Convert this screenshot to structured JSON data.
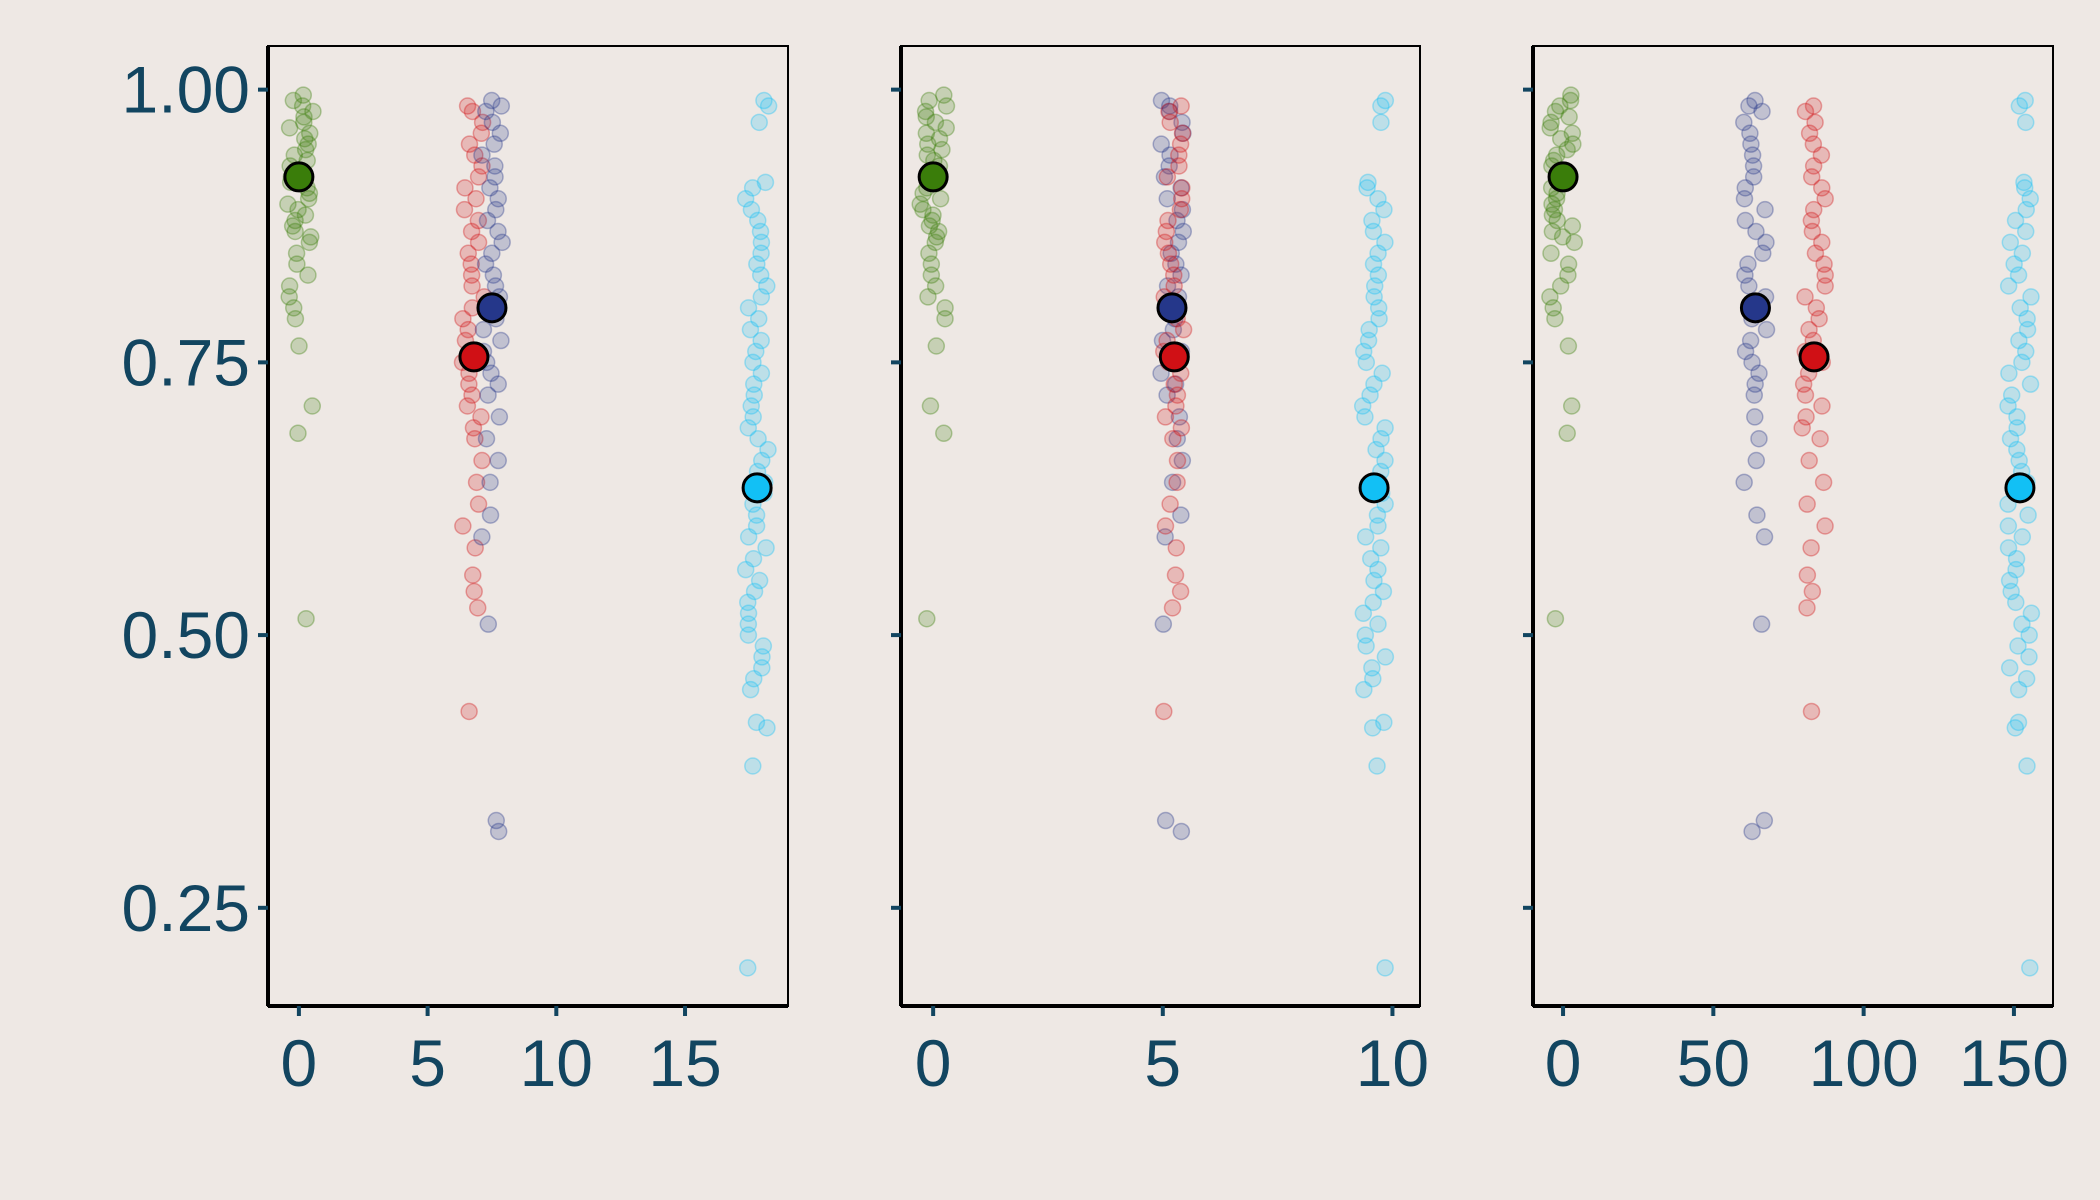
{
  "chart_data": [
    {
      "type": "scatter",
      "xlim": [
        -1.2,
        19
      ],
      "x_ticks": [
        "0",
        "5",
        "10",
        "15"
      ],
      "x_tick_values": [
        0,
        5,
        10,
        15
      ],
      "ylim": [
        0.16,
        1.04
      ],
      "y_ticks": [
        "0.25",
        "0.50",
        "0.75",
        "1.00"
      ],
      "y_tick_values": [
        0.25,
        0.5,
        0.75,
        1.0
      ],
      "show_y_labels": true,
      "series": [
        {
          "color": "#3A7D0A",
          "x_center": 0.0,
          "mean": 0.92,
          "spread": 0.55,
          "points": [
            0.995,
            0.99,
            0.985,
            0.98,
            0.975,
            0.97,
            0.965,
            0.96,
            0.955,
            0.95,
            0.945,
            0.94,
            0.935,
            0.93,
            0.925,
            0.92,
            0.915,
            0.91,
            0.905,
            0.9,
            0.895,
            0.89,
            0.885,
            0.88,
            0.875,
            0.87,
            0.865,
            0.86,
            0.85,
            0.84,
            0.83,
            0.82,
            0.81,
            0.8,
            0.79,
            0.765,
            0.71,
            0.685,
            0.515
          ]
        },
        {
          "color": "#D01015",
          "x_center": 6.8,
          "mean": 0.755,
          "spread": 0.45,
          "points": [
            0.985,
            0.98,
            0.97,
            0.96,
            0.95,
            0.94,
            0.93,
            0.92,
            0.91,
            0.9,
            0.89,
            0.88,
            0.87,
            0.86,
            0.85,
            0.84,
            0.83,
            0.82,
            0.81,
            0.8,
            0.79,
            0.78,
            0.77,
            0.76,
            0.75,
            0.74,
            0.73,
            0.72,
            0.71,
            0.7,
            0.69,
            0.68,
            0.66,
            0.64,
            0.62,
            0.6,
            0.58,
            0.555,
            0.54,
            0.525,
            0.43
          ]
        },
        {
          "color": "#25378A",
          "x_center": 7.5,
          "mean": 0.8,
          "spread": 0.4,
          "points": [
            0.99,
            0.985,
            0.98,
            0.97,
            0.96,
            0.95,
            0.94,
            0.93,
            0.92,
            0.91,
            0.9,
            0.89,
            0.88,
            0.87,
            0.86,
            0.85,
            0.84,
            0.83,
            0.82,
            0.81,
            0.8,
            0.79,
            0.78,
            0.77,
            0.76,
            0.75,
            0.74,
            0.73,
            0.72,
            0.7,
            0.68,
            0.66,
            0.64,
            0.61,
            0.59,
            0.51,
            0.33,
            0.32
          ]
        },
        {
          "color": "#12C0F5",
          "x_center": 17.8,
          "mean": 0.635,
          "spread": 0.45,
          "points": [
            0.99,
            0.985,
            0.97,
            0.915,
            0.91,
            0.9,
            0.89,
            0.88,
            0.87,
            0.86,
            0.85,
            0.84,
            0.83,
            0.82,
            0.81,
            0.8,
            0.79,
            0.78,
            0.77,
            0.76,
            0.75,
            0.74,
            0.73,
            0.72,
            0.71,
            0.7,
            0.69,
            0.68,
            0.67,
            0.66,
            0.65,
            0.64,
            0.63,
            0.62,
            0.61,
            0.6,
            0.59,
            0.58,
            0.57,
            0.56,
            0.55,
            0.54,
            0.53,
            0.52,
            0.51,
            0.5,
            0.49,
            0.48,
            0.47,
            0.46,
            0.45,
            0.42,
            0.415,
            0.38,
            0.195
          ]
        }
      ]
    },
    {
      "type": "scatter",
      "xlim": [
        -0.7,
        10.6
      ],
      "x_ticks": [
        "0",
        "5",
        "10"
      ],
      "x_tick_values": [
        0,
        5,
        10
      ],
      "ylim": [
        0.16,
        1.04
      ],
      "y_ticks": [
        "",
        "",
        "",
        ""
      ],
      "y_tick_values": [
        0.25,
        0.5,
        0.75,
        1.0
      ],
      "show_y_labels": false,
      "series": [
        {
          "color": "#3A7D0A",
          "x_center": 0.0,
          "mean": 0.92,
          "spread": 0.3,
          "points": [
            0.995,
            0.99,
            0.985,
            0.98,
            0.975,
            0.97,
            0.965,
            0.96,
            0.955,
            0.95,
            0.945,
            0.94,
            0.935,
            0.93,
            0.925,
            0.92,
            0.915,
            0.91,
            0.905,
            0.9,
            0.895,
            0.89,
            0.885,
            0.88,
            0.875,
            0.87,
            0.865,
            0.86,
            0.85,
            0.84,
            0.83,
            0.82,
            0.81,
            0.8,
            0.79,
            0.765,
            0.71,
            0.685,
            0.515
          ]
        },
        {
          "color": "#25378A",
          "x_center": 5.2,
          "mean": 0.8,
          "spread": 0.25,
          "points": [
            0.99,
            0.985,
            0.98,
            0.97,
            0.96,
            0.95,
            0.94,
            0.93,
            0.92,
            0.91,
            0.9,
            0.89,
            0.88,
            0.87,
            0.86,
            0.85,
            0.84,
            0.83,
            0.82,
            0.81,
            0.8,
            0.79,
            0.78,
            0.77,
            0.76,
            0.75,
            0.74,
            0.73,
            0.72,
            0.7,
            0.68,
            0.66,
            0.64,
            0.61,
            0.59,
            0.51,
            0.33,
            0.32
          ]
        },
        {
          "color": "#D01015",
          "x_center": 5.25,
          "mean": 0.755,
          "spread": 0.25,
          "points": [
            0.985,
            0.98,
            0.97,
            0.96,
            0.95,
            0.94,
            0.93,
            0.92,
            0.91,
            0.9,
            0.89,
            0.88,
            0.87,
            0.86,
            0.85,
            0.84,
            0.83,
            0.82,
            0.81,
            0.8,
            0.79,
            0.78,
            0.77,
            0.76,
            0.75,
            0.74,
            0.73,
            0.72,
            0.71,
            0.7,
            0.69,
            0.68,
            0.66,
            0.64,
            0.62,
            0.6,
            0.58,
            0.555,
            0.54,
            0.525,
            0.43
          ]
        },
        {
          "color": "#12C0F5",
          "x_center": 9.6,
          "mean": 0.635,
          "spread": 0.25,
          "points": [
            0.99,
            0.985,
            0.97,
            0.915,
            0.91,
            0.9,
            0.89,
            0.88,
            0.87,
            0.86,
            0.85,
            0.84,
            0.83,
            0.82,
            0.81,
            0.8,
            0.79,
            0.78,
            0.77,
            0.76,
            0.75,
            0.74,
            0.73,
            0.72,
            0.71,
            0.7,
            0.69,
            0.68,
            0.67,
            0.66,
            0.65,
            0.64,
            0.63,
            0.62,
            0.61,
            0.6,
            0.59,
            0.58,
            0.57,
            0.56,
            0.55,
            0.54,
            0.53,
            0.52,
            0.51,
            0.5,
            0.49,
            0.48,
            0.47,
            0.46,
            0.45,
            0.42,
            0.415,
            0.38,
            0.195
          ]
        }
      ]
    },
    {
      "type": "scatter",
      "xlim": [
        -10,
        163
      ],
      "x_ticks": [
        "0",
        "50",
        "100",
        "150"
      ],
      "x_tick_values": [
        0,
        50,
        100,
        150
      ],
      "ylim": [
        0.16,
        1.04
      ],
      "y_ticks": [
        "",
        "",
        "",
        ""
      ],
      "y_tick_values": [
        0.25,
        0.5,
        0.75,
        1.0
      ],
      "show_y_labels": false,
      "series": [
        {
          "color": "#3A7D0A",
          "x_center": 0.0,
          "mean": 0.92,
          "spread": 4.5,
          "points": [
            0.995,
            0.99,
            0.985,
            0.98,
            0.975,
            0.97,
            0.965,
            0.96,
            0.955,
            0.95,
            0.945,
            0.94,
            0.935,
            0.93,
            0.925,
            0.92,
            0.915,
            0.91,
            0.905,
            0.9,
            0.895,
            0.89,
            0.885,
            0.88,
            0.875,
            0.87,
            0.865,
            0.86,
            0.85,
            0.84,
            0.83,
            0.82,
            0.81,
            0.8,
            0.79,
            0.765,
            0.71,
            0.685,
            0.515
          ]
        },
        {
          "color": "#25378A",
          "x_center": 64.0,
          "mean": 0.8,
          "spread": 4.0,
          "points": [
            0.99,
            0.985,
            0.98,
            0.97,
            0.96,
            0.95,
            0.94,
            0.93,
            0.92,
            0.91,
            0.9,
            0.89,
            0.88,
            0.87,
            0.86,
            0.85,
            0.84,
            0.83,
            0.82,
            0.81,
            0.8,
            0.79,
            0.78,
            0.77,
            0.76,
            0.75,
            0.74,
            0.73,
            0.72,
            0.7,
            0.68,
            0.66,
            0.64,
            0.61,
            0.59,
            0.51,
            0.33,
            0.32
          ]
        },
        {
          "color": "#D01015",
          "x_center": 83.5,
          "mean": 0.755,
          "spread": 4.0,
          "points": [
            0.985,
            0.98,
            0.97,
            0.96,
            0.95,
            0.94,
            0.93,
            0.92,
            0.91,
            0.9,
            0.89,
            0.88,
            0.87,
            0.86,
            0.85,
            0.84,
            0.83,
            0.82,
            0.81,
            0.8,
            0.79,
            0.78,
            0.77,
            0.76,
            0.75,
            0.74,
            0.73,
            0.72,
            0.71,
            0.7,
            0.69,
            0.68,
            0.66,
            0.64,
            0.62,
            0.6,
            0.58,
            0.555,
            0.54,
            0.525,
            0.43
          ]
        },
        {
          "color": "#12C0F5",
          "x_center": 152.0,
          "mean": 0.635,
          "spread": 4.0,
          "points": [
            0.99,
            0.985,
            0.97,
            0.915,
            0.91,
            0.9,
            0.89,
            0.88,
            0.87,
            0.86,
            0.85,
            0.84,
            0.83,
            0.82,
            0.81,
            0.8,
            0.79,
            0.78,
            0.77,
            0.76,
            0.75,
            0.74,
            0.73,
            0.72,
            0.71,
            0.7,
            0.69,
            0.68,
            0.67,
            0.66,
            0.65,
            0.64,
            0.63,
            0.62,
            0.61,
            0.6,
            0.59,
            0.58,
            0.57,
            0.56,
            0.55,
            0.54,
            0.53,
            0.52,
            0.51,
            0.5,
            0.49,
            0.48,
            0.47,
            0.46,
            0.45,
            0.42,
            0.415,
            0.38,
            0.195
          ]
        }
      ]
    }
  ],
  "colors": {
    "background": "#EEE8E4",
    "axis": "#000000",
    "tick_text": "#124560"
  }
}
